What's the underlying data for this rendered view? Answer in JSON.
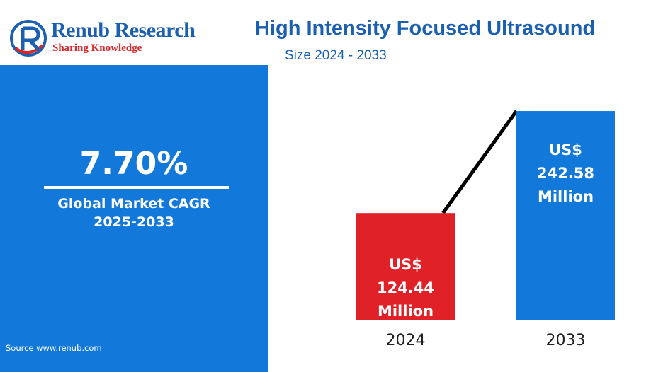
{
  "brand": {
    "name": "Renub Research",
    "tagline": "Sharing Knowledge"
  },
  "header": {
    "title": "High Intensity Focused Ultrasound",
    "subtitle": "Size 2024 - 2033"
  },
  "cagr": {
    "value": "7.70%",
    "label_line1": "Global Market CAGR",
    "label_line2": "2025-2033"
  },
  "footer": {
    "source": "Source  www.renub.com"
  },
  "colors": {
    "brand_blue": "#1b5fb0",
    "panel_blue": "#1278da",
    "bar_2024": "#e02127",
    "bar_2033": "#1278da",
    "trend_line": "#000000"
  },
  "chart_data": {
    "type": "bar",
    "categories": [
      "2024",
      "2033"
    ],
    "values": [
      124.44,
      242.58
    ],
    "bar_labels": [
      [
        "US$",
        "124.44",
        "Million"
      ],
      [
        "US$",
        "242.58",
        "Million"
      ]
    ],
    "unit": "US$ Million",
    "ylim": [
      0,
      250
    ],
    "grid": false,
    "has_trend_line": true
  }
}
